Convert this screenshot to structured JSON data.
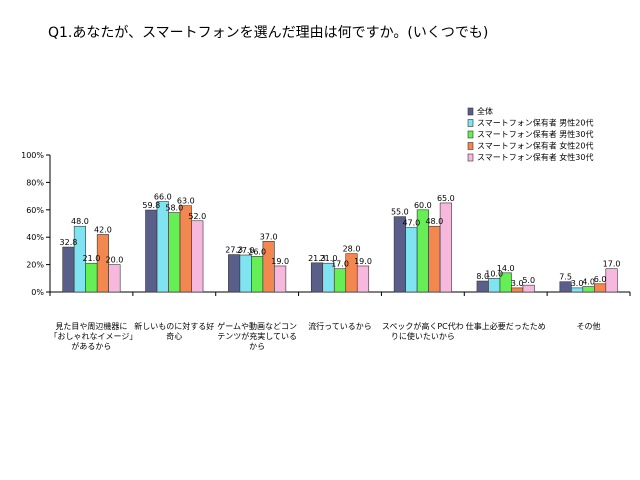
{
  "chart_data": {
    "type": "bar",
    "title": "Q1.あなたが、スマートフォンを選んだ理由は何ですか。(いくつでも)",
    "categories": [
      "見た目や周辺機器に「おしゃれなイメージ」があるから",
      "新しいものに対する好奇心",
      "ゲームや動画などコンテンツが充実しているから",
      "流行っているから",
      "スペックが高くPC代わりに使いたいから",
      "仕事上必要だったため",
      "その他"
    ],
    "series": [
      {
        "name": "全体",
        "color": "#5a5f8a",
        "values": [
          32.8,
          59.8,
          27.3,
          21.3,
          55.0,
          8.0,
          7.5
        ]
      },
      {
        "name": "スマートフォン保有者 男性20代",
        "color": "#7fe3f2",
        "values": [
          48.0,
          66.0,
          27.0,
          21.0,
          47.0,
          10.0,
          3.0
        ]
      },
      {
        "name": "スマートフォン保有者 男性30代",
        "color": "#66ee55",
        "values": [
          21.0,
          58.0,
          26.0,
          17.0,
          60.0,
          14.0,
          4.0
        ]
      },
      {
        "name": "スマートフォン保有者 女性20代",
        "color": "#f28850",
        "values": [
          42.0,
          63.0,
          37.0,
          28.0,
          48.0,
          3.0,
          6.0
        ]
      },
      {
        "name": "スマートフォン保有者 女性30代",
        "color": "#f7b8de",
        "values": [
          20.0,
          52.0,
          19.0,
          19.0,
          65.0,
          5.0,
          17.0
        ]
      }
    ],
    "data_labels": [
      [
        "32.8",
        "59.8",
        "27.3",
        "21.3",
        "55.0",
        "8.0",
        "7.5"
      ],
      [
        "48.0",
        "66.0",
        "27.0",
        "21.0",
        "47.0",
        "10.0",
        "3.0"
      ],
      [
        "21.0",
        "58.0",
        "26.0",
        "17.0",
        "60.0",
        "14.0",
        "4.0"
      ],
      [
        "42.0",
        "63.0",
        "37.0",
        "28.0",
        "48.0",
        "3.0",
        "6.0"
      ],
      [
        "20.0",
        "52.0",
        "19.0",
        "19.0",
        "65.0",
        "5.0",
        "17.0"
      ]
    ],
    "yticks": [
      "0%",
      "20%",
      "40%",
      "60%",
      "80%",
      "100%"
    ],
    "ylim": [
      0,
      100
    ],
    "grid": false,
    "legend": "top-right"
  }
}
